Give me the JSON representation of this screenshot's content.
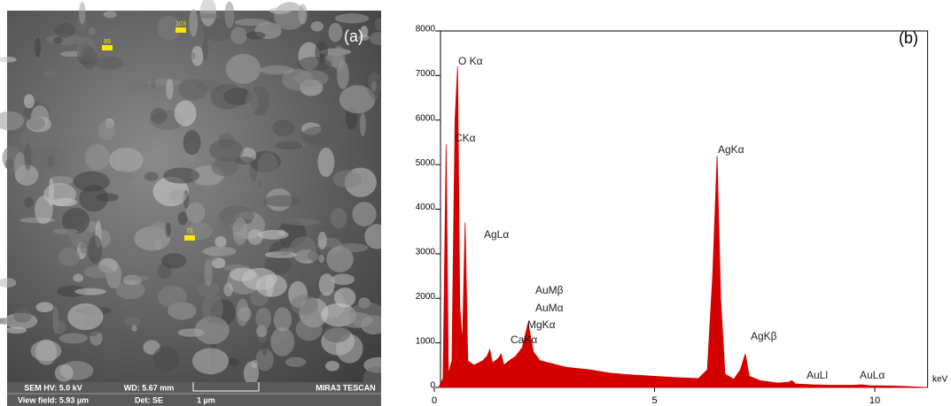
{
  "sem_image": {
    "panel_label": "(a)",
    "markers": [
      "89",
      "103",
      "71"
    ],
    "info_bar": {
      "hv": "SEM HV: 5.0 kV",
      "wd": "WD: 5.67 mm",
      "brand": "MIRA3 TESCAN",
      "view_field": "View field: 5.93 µm",
      "detector": "Det: SE",
      "scale": "1 µm"
    }
  },
  "chart_data": {
    "type": "area",
    "panel_label": "(b)",
    "x_label": "keV",
    "color": "#d40000",
    "x": [
      0.1,
      0.2,
      0.27,
      0.32,
      0.4,
      0.47,
      0.53,
      0.58,
      0.64,
      0.7,
      0.76,
      0.9,
      1.0,
      1.1,
      1.2,
      1.26,
      1.32,
      1.45,
      1.52,
      1.58,
      1.7,
      1.85,
      2.0,
      2.13,
      2.25,
      2.4,
      2.6,
      3.0,
      3.5,
      4.0,
      4.5,
      5.0,
      5.5,
      6.0,
      6.2,
      6.32,
      6.42,
      6.5,
      6.6,
      6.8,
      6.95,
      7.06,
      7.15,
      7.4,
      7.8,
      8.05,
      8.12,
      8.2,
      8.6,
      9.0,
      9.5,
      9.7,
      9.9,
      10.5,
      11.2
    ],
    "values": [
      0,
      200,
      5450,
      300,
      600,
      6000,
      7200,
      1800,
      1000,
      3700,
      600,
      500,
      550,
      600,
      700,
      850,
      550,
      650,
      750,
      500,
      600,
      700,
      900,
      1450,
      800,
      600,
      550,
      450,
      400,
      320,
      280,
      250,
      220,
      200,
      400,
      2500,
      5200,
      2000,
      300,
      180,
      400,
      750,
      250,
      150,
      100,
      120,
      150,
      80,
      60,
      50,
      50,
      60,
      40,
      30,
      0
    ],
    "annotations": [
      "O Kα",
      "CKα",
      "AgLα",
      "AuMβ",
      "AuMα",
      "MgKα",
      "CaKα",
      "AgKα",
      "AgKβ",
      "AuLl",
      "AuLα"
    ],
    "xlim": [
      0.1,
      11.2
    ],
    "ylim": [
      0,
      8000
    ],
    "xticks": [
      0,
      5,
      10
    ],
    "yticks": [
      0,
      1000,
      2000,
      3000,
      4000,
      5000,
      6000,
      7000,
      8000
    ]
  }
}
